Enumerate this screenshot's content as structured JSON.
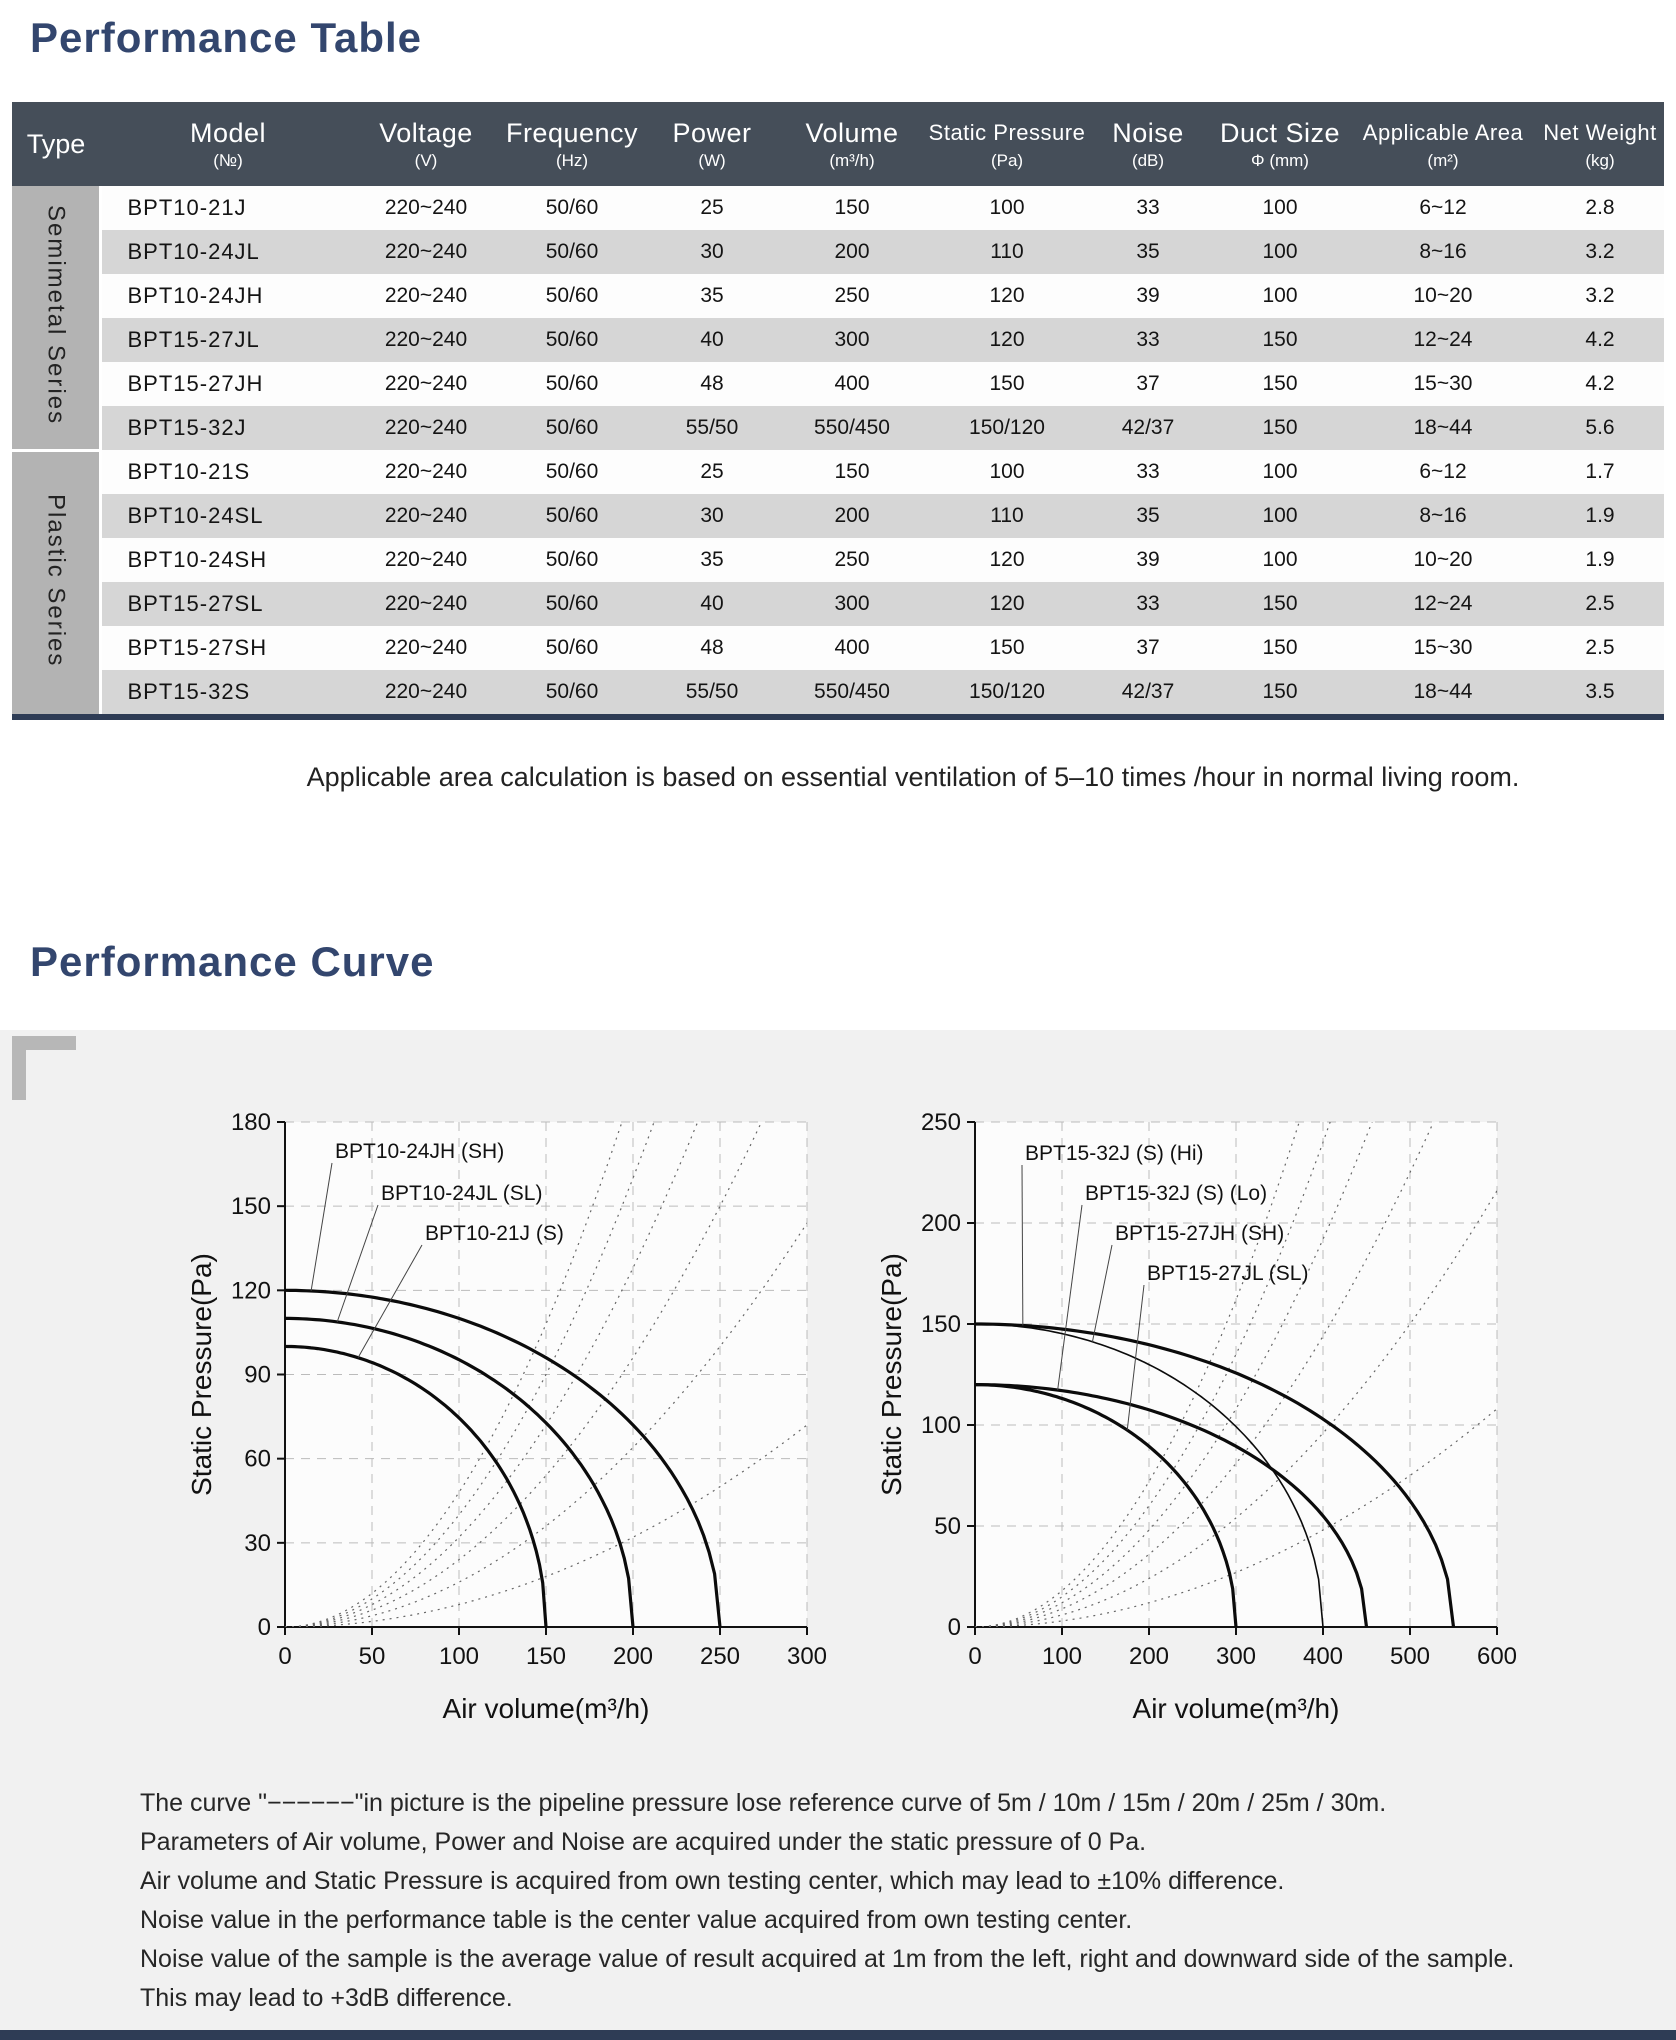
{
  "page": {
    "title1": "Performance Table",
    "title2": "Performance Curve",
    "table_note": "Applicable area calculation is based on essential ventilation of 5–10 times /hour in normal living room.",
    "footnotes": [
      "The curve \"−−−−−−\"in picture is the pipeline pressure lose reference curve of 5m / 10m / 15m / 20m / 25m / 30m.",
      "Parameters of Air volume, Power and Noise are acquired under the static pressure of 0 Pa.",
      "Air volume and Static Pressure is acquired from own testing center, which may lead to ±10% difference.",
      "Noise value in the performance table is the center value acquired from own testing center.",
      "Noise value of the sample is the average value of result acquired at 1m from the left, right and downward side of the sample.",
      "This may lead to +3dB difference."
    ]
  },
  "table": {
    "type_header": "Type",
    "columns": [
      {
        "label": "Model",
        "unit": "(№)"
      },
      {
        "label": "Voltage",
        "unit": "(V)"
      },
      {
        "label": "Frequency",
        "unit": "(Hz)"
      },
      {
        "label": "Power",
        "unit": "(W)"
      },
      {
        "label": "Volume",
        "unit": "(m³/h)"
      },
      {
        "label": "Static Pressure",
        "unit": "(Pa)"
      },
      {
        "label": "Noise",
        "unit": "(dB)"
      },
      {
        "label": "Duct Size",
        "unit": "Φ (mm)"
      },
      {
        "label": "Applicable Area",
        "unit": "(m²)"
      },
      {
        "label": "Net Weight",
        "unit": "(kg)"
      }
    ],
    "groups": [
      {
        "type": "Semimetal Series",
        "rows": [
          [
            "BPT10-21J",
            "220~240",
            "50/60",
            "25",
            "150",
            "100",
            "33",
            "100",
            "6~12",
            "2.8"
          ],
          [
            "BPT10-24JL",
            "220~240",
            "50/60",
            "30",
            "200",
            "110",
            "35",
            "100",
            "8~16",
            "3.2"
          ],
          [
            "BPT10-24JH",
            "220~240",
            "50/60",
            "35",
            "250",
            "120",
            "39",
            "100",
            "10~20",
            "3.2"
          ],
          [
            "BPT15-27JL",
            "220~240",
            "50/60",
            "40",
            "300",
            "120",
            "33",
            "150",
            "12~24",
            "4.2"
          ],
          [
            "BPT15-27JH",
            "220~240",
            "50/60",
            "48",
            "400",
            "150",
            "37",
            "150",
            "15~30",
            "4.2"
          ],
          [
            "BPT15-32J",
            "220~240",
            "50/60",
            "55/50",
            "550/450",
            "150/120",
            "42/37",
            "150",
            "18~44",
            "5.6"
          ]
        ]
      },
      {
        "type": "Plastic Series",
        "rows": [
          [
            "BPT10-21S",
            "220~240",
            "50/60",
            "25",
            "150",
            "100",
            "33",
            "100",
            "6~12",
            "1.7"
          ],
          [
            "BPT10-24SL",
            "220~240",
            "50/60",
            "30",
            "200",
            "110",
            "35",
            "100",
            "8~16",
            "1.9"
          ],
          [
            "BPT10-24SH",
            "220~240",
            "50/60",
            "35",
            "250",
            "120",
            "39",
            "100",
            "10~20",
            "1.9"
          ],
          [
            "BPT15-27SL",
            "220~240",
            "50/60",
            "40",
            "300",
            "120",
            "33",
            "150",
            "12~24",
            "2.5"
          ],
          [
            "BPT15-27SH",
            "220~240",
            "50/60",
            "48",
            "400",
            "150",
            "37",
            "150",
            "15~30",
            "2.5"
          ],
          [
            "BPT15-32S",
            "220~240",
            "50/60",
            "55/50",
            "550/450",
            "150/120",
            "42/37",
            "150",
            "18~44",
            "3.5"
          ]
        ]
      }
    ]
  },
  "chart_data": [
    {
      "type": "line",
      "title": "",
      "xlabel": "Air volume(m³/h)",
      "ylabel": "Static Pressure(Pa)",
      "xlim": [
        0,
        300
      ],
      "ylim": [
        0,
        180
      ],
      "xticks": [
        0,
        50,
        100,
        150,
        200,
        250,
        300
      ],
      "yticks": [
        0,
        30,
        60,
        90,
        120,
        150,
        180
      ],
      "grid": "dashed",
      "series": [
        {
          "name": "BPT10-24JH (SH)",
          "p0": 120,
          "qmax": 250
        },
        {
          "name": "BPT10-24JL (SL)",
          "p0": 110,
          "qmax": 200
        },
        {
          "name": "BPT10-21J (S)",
          "p0": 100,
          "qmax": 150
        }
      ],
      "ref_curves": {
        "label": "pipeline pressure lose reference",
        "lengths_m": [
          5,
          10,
          15,
          20,
          25,
          30
        ],
        "k_base": 0.0008
      }
    },
    {
      "type": "line",
      "title": "",
      "xlabel": "Air volume(m³/h)",
      "ylabel": "Static Pressure(Pa)",
      "xlim": [
        0,
        600
      ],
      "ylim": [
        0,
        250
      ],
      "xticks": [
        0,
        100,
        200,
        300,
        400,
        500,
        600
      ],
      "yticks": [
        0,
        50,
        100,
        150,
        200,
        250
      ],
      "grid": "dashed",
      "series": [
        {
          "name": "BPT15-32J (S) (Hi)",
          "p0": 150,
          "qmax": 550
        },
        {
          "name": "BPT15-32J (S) (Lo)",
          "p0": 120,
          "qmax": 450
        },
        {
          "name": "BPT15-27JH (SH)",
          "p0": 150,
          "qmax": 400
        },
        {
          "name": "BPT15-27JL (SL)",
          "p0": 120,
          "qmax": 300
        }
      ],
      "ref_curves": {
        "label": "pipeline pressure lose reference",
        "lengths_m": [
          5,
          10,
          15,
          20,
          25,
          30
        ],
        "k_base": 0.0003
      }
    }
  ]
}
